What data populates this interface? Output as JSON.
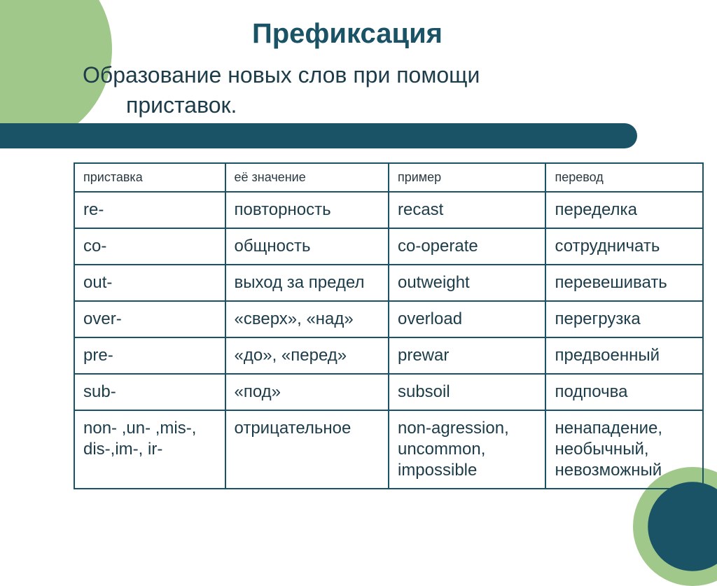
{
  "title": "Префиксация",
  "subtitle_line1": "Образование новых слов при помощи",
  "subtitle_line2": "приставок.",
  "colors": {
    "accent_green": "#a0c88a",
    "accent_teal": "#1a5266",
    "text_dark": "#1d3c4a",
    "border": "#1a5266",
    "background": "#ffffff"
  },
  "table": {
    "headers": [
      "приставка",
      "её значение",
      "пример",
      "перевод"
    ],
    "rows": [
      [
        "re-",
        "повторность",
        "recast",
        "переделка"
      ],
      [
        "co-",
        "общность",
        "co-operate",
        "сотрудничать"
      ],
      [
        "out-",
        "выход за предел",
        "outweight",
        "перевешивать"
      ],
      [
        "over-",
        "«сверх», «над»",
        "overload",
        "перегрузка"
      ],
      [
        "pre-",
        "«до», «перед»",
        "prewar",
        "предвоенный"
      ],
      [
        "sub-",
        "«под»",
        "subsoil",
        "подпочва"
      ],
      [
        "non- ,un- ,mis-, dis-,im-, ir-",
        "отрицательное",
        "non-agression, uncommon, impossible",
        "ненападение, необычный, невозможный"
      ]
    ]
  }
}
